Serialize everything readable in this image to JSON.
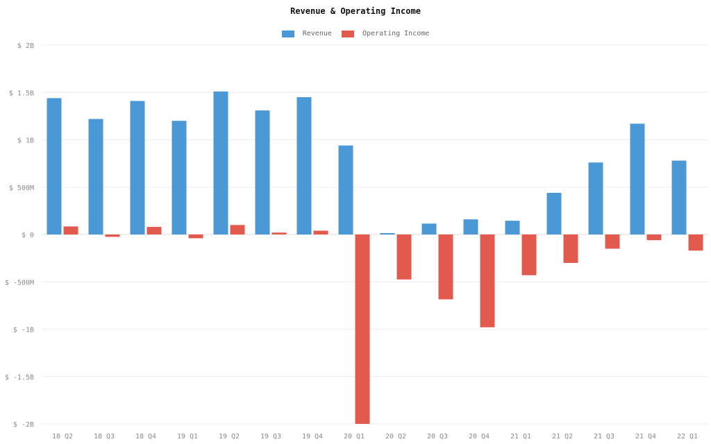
{
  "chart_data": {
    "type": "bar",
    "title": "Revenue & Operating Income",
    "xlabel": "",
    "ylabel": "",
    "ylim": [
      -2000,
      2000
    ],
    "y_unit": "M",
    "y_ticks": [
      2000,
      1500,
      1000,
      500,
      0,
      -500,
      -1000,
      -1500,
      -2000
    ],
    "y_tick_labels": [
      "$ 2B",
      "$ 1.5B",
      "$ 1B",
      "$ 500M",
      "$ 0",
      "$ -500M",
      "$ -1B",
      "$ -1.5B",
      "$ -2B"
    ],
    "grid": true,
    "legend_position": "top-center",
    "categories": [
      "18 Q2",
      "18 Q3",
      "18 Q4",
      "19 Q1",
      "19 Q2",
      "19 Q3",
      "19 Q4",
      "20 Q1",
      "20 Q2",
      "20 Q3",
      "20 Q4",
      "21 Q1",
      "21 Q2",
      "21 Q3",
      "21 Q4",
      "22 Q1"
    ],
    "series": [
      {
        "name": "Revenue",
        "color": "#4a98d6",
        "values": [
          1440,
          1220,
          1410,
          1200,
          1510,
          1310,
          1450,
          940,
          15,
          115,
          160,
          145,
          440,
          760,
          1170,
          780
        ]
      },
      {
        "name": "Operating Income",
        "color": "#e15a4d",
        "values": [
          85,
          -25,
          80,
          -40,
          100,
          20,
          40,
          -2000,
          -475,
          -685,
          -980,
          -430,
          -300,
          -150,
          -60,
          -170
        ]
      }
    ]
  }
}
